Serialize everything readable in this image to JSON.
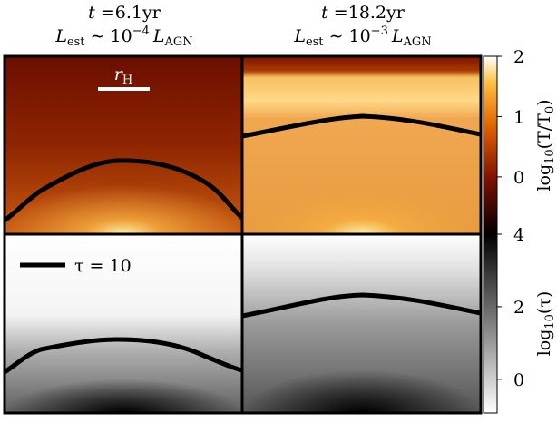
{
  "chart_data": {
    "type": "heatmap",
    "panels": [
      {
        "title": [
          "t",
          " =6.1yr"
        ],
        "subtitle": [
          "L",
          "est",
          " ∼ 10",
          "−4",
          "L",
          "AGN"
        ]
      },
      {
        "title": [
          "t",
          " =18.2yr"
        ],
        "subtitle": [
          "L",
          "est",
          " ∼ 10",
          "−3",
          "L",
          "AGN"
        ]
      }
    ],
    "annotation": [
      "r",
      "H"
    ],
    "legend": "τ = 10",
    "colorbars": [
      {
        "label": [
          "log",
          "10",
          "(T/T",
          "0",
          ")"
        ],
        "ylim": [
          -0.95,
          2
        ],
        "yticks": [
          0,
          1,
          2
        ]
      },
      {
        "label": [
          "log",
          "10",
          "(τ)"
        ],
        "ylim": [
          -0.93,
          4
        ],
        "yticks": [
          0,
          2,
          4
        ]
      }
    ]
  }
}
